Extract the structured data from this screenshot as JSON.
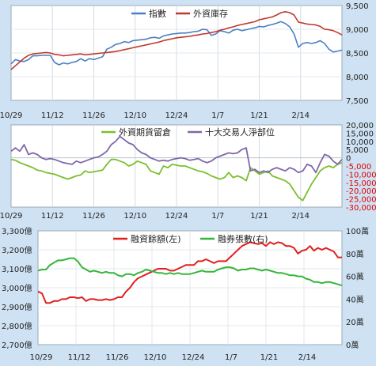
{
  "chart_data": [
    {
      "type": "line",
      "panel": "top",
      "x_tick_labels": [
        "10/29",
        "11/12",
        "11/26",
        "12/10",
        "12/24",
        "1/7",
        "1/21",
        "2/14"
      ],
      "ylim": [
        7500,
        9500
      ],
      "y_ticks": [
        "7,500",
        "8,000",
        "8,500",
        "9,000",
        "9,500"
      ],
      "series": [
        {
          "name": "指數",
          "color": "#4a80c2",
          "values": [
            8270,
            8360,
            8330,
            8320,
            8360,
            8440,
            8440,
            8450,
            8450,
            8450,
            8300,
            8250,
            8290,
            8270,
            8300,
            8320,
            8380,
            8330,
            8380,
            8360,
            8390,
            8420,
            8580,
            8620,
            8680,
            8700,
            8740,
            8720,
            8760,
            8770,
            8780,
            8790,
            8820,
            8830,
            8810,
            8860,
            8880,
            8900,
            8910,
            8920,
            8920,
            8930,
            8950,
            8960,
            9000,
            8990,
            8870,
            8900,
            8970,
            8950,
            8920,
            8980,
            9000,
            8970,
            8990,
            9010,
            9030,
            9060,
            9050,
            9080,
            9100,
            9130,
            9160,
            9120,
            9050,
            8900,
            8620,
            8700,
            8720,
            8700,
            8720,
            8760,
            8700,
            8580,
            8520,
            8540,
            8560
          ]
        },
        {
          "name": "外資庫存",
          "color": "#c0392b",
          "values": [
            8150,
            8230,
            8310,
            8390,
            8450,
            8480,
            8490,
            8500,
            8510,
            8500,
            8470,
            8460,
            8440,
            8450,
            8460,
            8470,
            8480,
            8460,
            8470,
            8480,
            8490,
            8500,
            8510,
            8520,
            8530,
            8550,
            8570,
            8590,
            8610,
            8630,
            8650,
            8670,
            8690,
            8710,
            8730,
            8760,
            8780,
            8800,
            8820,
            8830,
            8840,
            8850,
            8870,
            8880,
            8900,
            8910,
            8930,
            8950,
            8980,
            9000,
            9030,
            9050,
            9080,
            9100,
            9120,
            9140,
            9160,
            9200,
            9220,
            9240,
            9260,
            9300,
            9350,
            9370,
            9350,
            9300,
            9150,
            9130,
            9110,
            9100,
            9090,
            9060,
            9000,
            8990,
            8970,
            8930,
            8880
          ]
        }
      ]
    },
    {
      "type": "line",
      "panel": "middle",
      "x_tick_labels": [
        "10/29",
        "11/12",
        "11/26",
        "12/10",
        "12/24",
        "1/7",
        "1/21",
        "2/14"
      ],
      "ylim": [
        -30000,
        20000
      ],
      "y_ticks_pos": [
        "20,000",
        "15,000",
        "10,000",
        "5,000",
        "0"
      ],
      "y_ticks_neg": [
        "-5,000",
        "-10,000",
        "-15,000",
        "-20,000",
        "-25,000",
        "-30,000"
      ],
      "series": [
        {
          "name": "外資期貨留倉",
          "color": "#7cbf2f",
          "values": [
            -1000,
            -1500,
            -3000,
            -4000,
            -5000,
            -6000,
            -7500,
            -8000,
            -9000,
            -9500,
            -10000,
            -11000,
            -12000,
            -13000,
            -12000,
            -11000,
            -10500,
            -8000,
            -9000,
            -8500,
            -8000,
            -7500,
            -4000,
            -1000,
            -1000,
            -2000,
            -3000,
            -5000,
            -4000,
            -2000,
            -3000,
            -4000,
            -8000,
            -9000,
            -10000,
            -5000,
            -6000,
            -4000,
            -4500,
            -5000,
            -5000,
            -6000,
            -7000,
            -8000,
            -8500,
            -9500,
            -11000,
            -12000,
            -13000,
            -12000,
            -9000,
            -12000,
            -11000,
            -12000,
            -14000,
            -6000,
            -8000,
            -10000,
            -9000,
            -8000,
            -11000,
            -12000,
            -13000,
            -14000,
            -16000,
            -20000,
            -24000,
            -26000,
            -21000,
            -16000,
            -12000,
            -8000,
            -6000,
            -5000,
            -6000,
            -4000,
            -3000
          ]
        },
        {
          "name": "十大交易人淨部位",
          "color": "#8067a8",
          "values": [
            4000,
            6000,
            4000,
            8000,
            2000,
            3000,
            2000,
            0,
            -1000,
            -500,
            -1000,
            -2000,
            -3000,
            -3500,
            -4000,
            -2000,
            -3000,
            -2000,
            -1000,
            0,
            500,
            2000,
            4000,
            8000,
            10000,
            13000,
            11000,
            9000,
            8000,
            5000,
            3000,
            2000,
            0,
            -1000,
            -2000,
            -1500,
            -2000,
            -1000,
            -500,
            0,
            -500,
            -1500,
            -1000,
            -500,
            -2000,
            -3000,
            -2000,
            0,
            1000,
            2000,
            3000,
            2500,
            3000,
            5000,
            6000,
            -8000,
            -7000,
            -9000,
            -8000,
            -9000,
            -7000,
            -6000,
            -7000,
            -8000,
            -6000,
            -7000,
            -9000,
            -8000,
            -4000,
            -5000,
            -9000,
            -3000,
            2000,
            1000,
            -2000,
            -4000,
            -1000
          ]
        }
      ]
    },
    {
      "type": "line",
      "panel": "bottom",
      "x_tick_labels": [
        "10/29",
        "11/12",
        "11/26",
        "12/10",
        "12/24",
        "1/7",
        "1/21",
        "2/14"
      ],
      "ylim_left": [
        2700,
        3300
      ],
      "ylim_right": [
        0,
        100
      ],
      "y_ticks_left": [
        "3,300億",
        "3,200億",
        "3,100億",
        "3,000億",
        "2,900億",
        "2,800億",
        "2,700億"
      ],
      "y_ticks_right": [
        "100萬",
        "80萬",
        "60萬",
        "40萬",
        "20萬",
        "0萬"
      ],
      "series": [
        {
          "name": "融資餘額(左)",
          "axis": "left",
          "color": "#e02020",
          "values": [
            2980,
            2970,
            2920,
            2920,
            2930,
            2930,
            2940,
            2940,
            2950,
            2950,
            2945,
            2950,
            2930,
            2940,
            2940,
            2935,
            2935,
            2940,
            2935,
            2940,
            2950,
            2950,
            2980,
            3000,
            3030,
            3050,
            3060,
            3070,
            3080,
            3090,
            3100,
            3100,
            3100,
            3090,
            3090,
            3100,
            3110,
            3120,
            3120,
            3120,
            3140,
            3140,
            3150,
            3140,
            3130,
            3140,
            3140,
            3140,
            3160,
            3180,
            3200,
            3220,
            3230,
            3240,
            3235,
            3230,
            3235,
            3220,
            3240,
            3230,
            3240,
            3235,
            3220,
            3220,
            3210,
            3180,
            3195,
            3200,
            3220,
            3195,
            3210,
            3200,
            3210,
            3200,
            3190,
            3160,
            3160
          ]
        },
        {
          "name": "融券張數(右)",
          "axis": "right",
          "color": "#35b53a",
          "values": [
            65,
            66,
            66,
            70,
            72,
            74,
            74,
            75,
            76,
            76,
            73,
            68,
            66,
            64,
            65,
            64,
            63,
            64,
            63,
            63,
            61,
            60,
            62,
            62,
            61,
            63,
            64,
            66,
            65,
            64,
            63,
            63,
            62,
            63,
            62,
            63,
            62,
            62,
            62,
            63,
            64,
            65,
            64,
            64,
            64,
            66,
            67,
            68,
            68,
            67,
            65,
            66,
            66,
            67,
            67,
            66,
            65,
            66,
            65,
            64,
            63,
            63,
            62,
            61,
            61,
            60,
            60,
            58,
            57,
            55,
            55,
            54,
            55,
            55,
            54,
            53,
            52
          ]
        }
      ]
    }
  ]
}
